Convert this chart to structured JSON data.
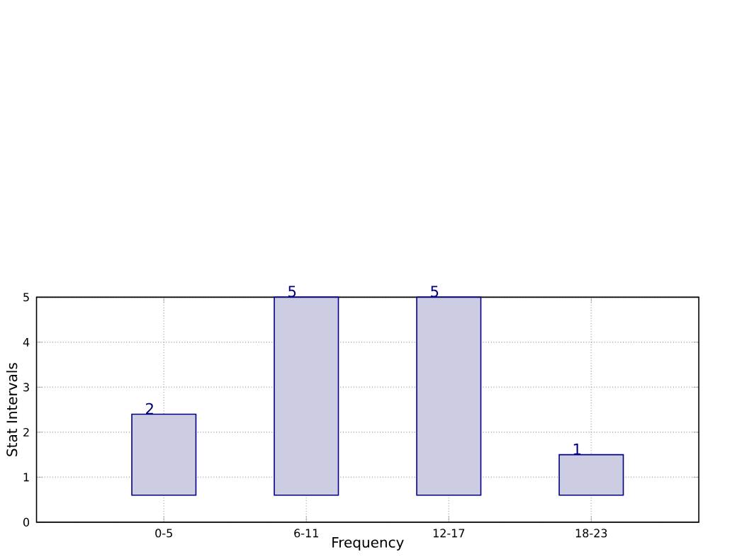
{
  "chart_data": {
    "type": "bar",
    "xlabel": "Frequency",
    "ylabel": "Stat Intervals",
    "categories": [
      "0-5",
      "6-11",
      "12-17",
      "18-23"
    ],
    "base": [
      0.6,
      0.6,
      0.6,
      0.6
    ],
    "values": [
      1.8,
      4.4,
      4.4,
      0.9
    ],
    "value_labels": [
      "2",
      "5",
      "5",
      "1"
    ],
    "color": "#cccce3",
    "ylim": [
      0,
      5
    ],
    "yticks": [
      0,
      1,
      2,
      3,
      4,
      5
    ],
    "grid": true
  }
}
